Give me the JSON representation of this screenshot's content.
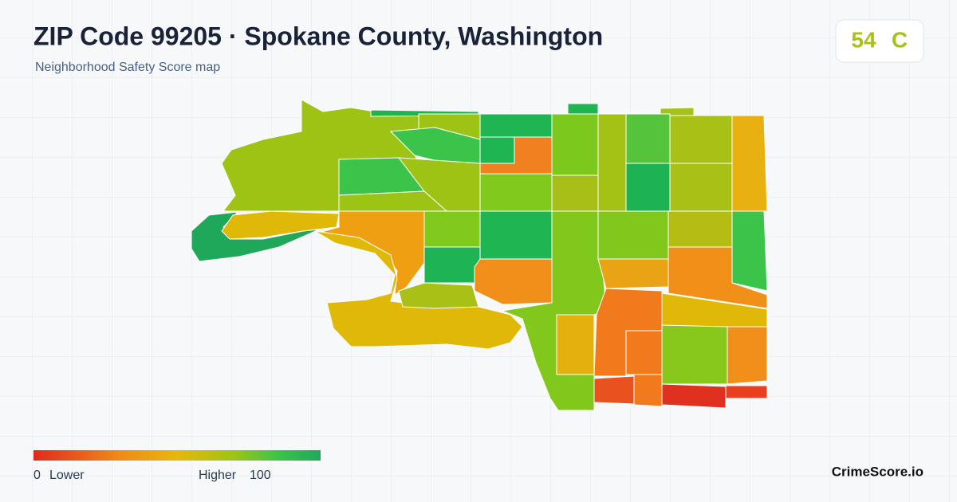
{
  "header": {
    "title": "ZIP Code 99205 · Spokane County, Washington",
    "subtitle": "Neighborhood Safety Score map"
  },
  "score": {
    "value": 54,
    "grade": "C"
  },
  "legend": {
    "min": 0,
    "min_label": "Lower",
    "max_label": "Higher",
    "max": 100
  },
  "brand": "CrimeScore.io"
}
